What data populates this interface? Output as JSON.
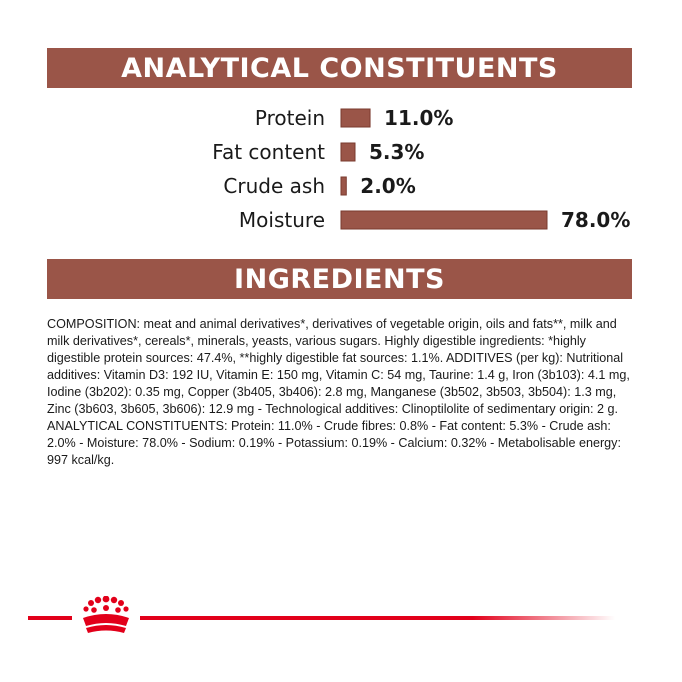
{
  "colors": {
    "banner_bg": "#9a5548",
    "bar_fill": "#9a5548",
    "bar_stroke": "#7a3a2e",
    "brand_red": "#e2001a"
  },
  "analytical": {
    "heading": "ANALYTICAL CONSTITUENTS"
  },
  "chart_data": {
    "type": "bar",
    "orientation": "horizontal",
    "categories": [
      "Protein",
      "Fat content",
      "Crude ash",
      "Moisture"
    ],
    "values": [
      11.0,
      5.3,
      2.0,
      78.0
    ],
    "value_labels": [
      "11.0%",
      "5.3%",
      "2.0%",
      "78.0%"
    ],
    "title": "ANALYTICAL CONSTITUENTS",
    "xlabel": "",
    "ylabel": "",
    "xlim": [
      0,
      78
    ],
    "grid": false
  },
  "ingredients": {
    "heading": "INGREDIENTS",
    "text": "COMPOSITION: meat and animal derivatives*, derivatives of vegetable origin, oils and fats**, milk and milk derivatives*, cereals*, minerals, yeasts, various sugars. Highly digestible ingredients: *highly digestible protein sources: 47.4%, **highly digestible fat sources: 1.1%. ADDITIVES (per kg): Nutritional additives: Vitamin D3: 192 IU, Vitamin E: 150 mg, Vitamin C: 54 mg, Taurine: 1.4 g, Iron (3b103): 4.1 mg, Iodine (3b202): 0.35 mg, Copper (3b405, 3b406): 2.8 mg, Manganese (3b502, 3b503, 3b504): 1.3 mg, Zinc (3b603, 3b605, 3b606): 12.9 mg - Technological additives: Clinoptilolite of sedimentary origin: 2 g. ANALYTICAL CONSTITUENTS: Protein: 11.0% - Crude fibres: 0.8% - Fat content: 5.3% - Crude ash: 2.0% - Moisture: 78.0% - Sodium: 0.19% - Potassium: 0.19% - Calcium: 0.32% - Metabolisable energy: 997 kcal/kg."
  },
  "footer": {
    "logo_icon": "royal-canin-crown-icon"
  }
}
